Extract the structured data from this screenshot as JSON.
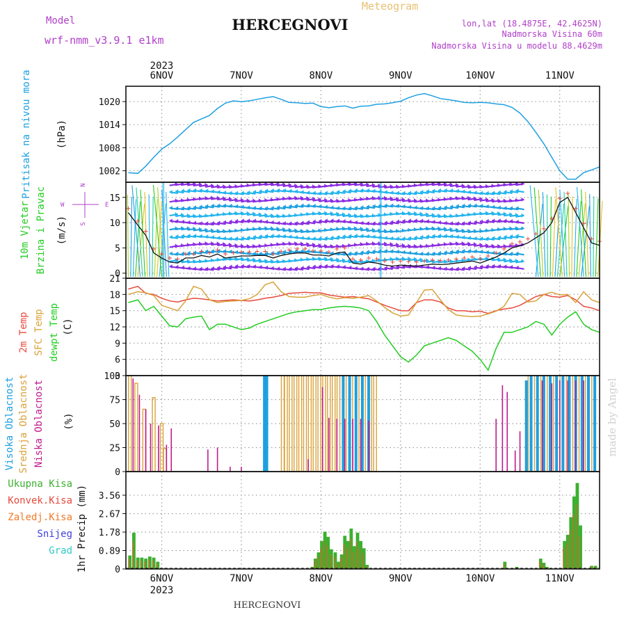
{
  "header": {
    "title": "HERCEGNOVI",
    "model_label": "Model",
    "model_name": "wrf-nmm_v3.9.1  e1km",
    "meteogram_label": "Meteogram",
    "lonlat": "lon,lat (18.4875E, 42.4625N)",
    "altitude": "Nadmorska Visina 60m",
    "model_altitude": "Nadmorska Visina u modelu 88.4629m",
    "footer_title": "HERCEGNOVI",
    "watermark": "made by Angel"
  },
  "colors": {
    "pressure": "#1ea0e0",
    "temp2m": "#e64a3c",
    "sfc": "#d9a23a",
    "dew": "#22cc22",
    "high_cloud": "#1ea0e0",
    "mid_cloud": "#d9a23a",
    "low_cloud": "#c01a8c",
    "precip_total": "#3cb030",
    "precip_conv": "#e64a3c",
    "title_purple": "#b040c8",
    "meteogram": "#e8c070"
  },
  "chart_data": [
    {
      "type": "line",
      "panel": "pressure",
      "ylabel_lines": [
        "Pritisak na nivou mora"
      ],
      "unit": "(hPa)",
      "x_days": [
        5.58,
        5.7,
        5.8,
        5.9,
        6.0,
        6.1,
        6.2,
        6.3,
        6.4,
        6.5,
        6.6,
        6.7,
        6.8,
        6.9,
        7.0,
        7.1,
        7.2,
        7.3,
        7.4,
        7.5,
        7.6,
        7.7,
        7.8,
        7.9,
        8.0,
        8.1,
        8.2,
        8.3,
        8.4,
        8.5,
        8.6,
        8.7,
        8.8,
        8.9,
        9.0,
        9.1,
        9.2,
        9.3,
        9.4,
        9.5,
        9.6,
        9.7,
        9.8,
        9.9,
        10.0,
        10.1,
        10.2,
        10.3,
        10.4,
        10.5,
        10.6,
        10.7,
        10.8,
        10.9,
        11.0,
        11.1,
        11.2,
        11.3,
        11.4,
        11.5
      ],
      "values": [
        1001.5,
        1001.3,
        1003.2,
        1005.5,
        1007.6,
        1009.0,
        1010.8,
        1012.7,
        1014.6,
        1015.5,
        1016.4,
        1018.2,
        1019.6,
        1020.2,
        1020.0,
        1020.2,
        1020.6,
        1021.0,
        1021.3,
        1020.6,
        1019.8,
        1019.7,
        1019.5,
        1019.6,
        1018.7,
        1018.4,
        1018.7,
        1018.9,
        1018.3,
        1018.8,
        1018.9,
        1019.3,
        1019.4,
        1019.7,
        1020.1,
        1021.0,
        1021.7,
        1022.1,
        1021.5,
        1020.8,
        1020.5,
        1020.2,
        1019.8,
        1019.7,
        1019.8,
        1019.7,
        1019.4,
        1019.2,
        1018.5,
        1017.0,
        1014.8,
        1012.0,
        1009.0,
        1005.5,
        1002.0,
        999.8,
        999.8,
        1001.5,
        1002.2,
        1003.0
      ],
      "ylim": [
        999,
        1024
      ],
      "yticks": [
        "1002",
        "1008",
        "1014",
        "1020"
      ]
    },
    {
      "type": "line",
      "panel": "wind",
      "ylabel_lines": [
        "10m Vjetar",
        "Brzina i Pravac"
      ],
      "unit": "(m/s)",
      "x_days": [
        5.58,
        5.7,
        5.8,
        5.9,
        6.0,
        6.1,
        6.2,
        6.3,
        6.4,
        6.5,
        6.6,
        6.7,
        6.8,
        6.9,
        7.0,
        7.1,
        7.2,
        7.3,
        7.4,
        7.5,
        7.6,
        7.7,
        7.8,
        7.9,
        8.0,
        8.1,
        8.2,
        8.3,
        8.4,
        8.5,
        8.6,
        8.7,
        8.8,
        8.9,
        9.0,
        9.1,
        9.2,
        9.3,
        9.4,
        9.5,
        9.6,
        9.7,
        9.8,
        9.9,
        10.0,
        10.1,
        10.2,
        10.3,
        10.4,
        10.5,
        10.6,
        10.7,
        10.8,
        10.9,
        11.0,
        11.1,
        11.2,
        11.3,
        11.4,
        11.5
      ],
      "values": [
        12.0,
        9.5,
        7.5,
        4.0,
        3.0,
        2.2,
        2.0,
        3.0,
        3.0,
        3.5,
        3.2,
        3.8,
        3.0,
        3.2,
        3.4,
        3.4,
        3.5,
        3.5,
        3.0,
        3.5,
        3.8,
        4.0,
        4.0,
        3.6,
        3.6,
        3.4,
        4.0,
        4.2,
        2.0,
        1.8,
        2.2,
        2.0,
        1.6,
        1.4,
        1.6,
        1.5,
        1.4,
        1.6,
        1.8,
        1.7,
        1.8,
        2.0,
        2.2,
        2.4,
        2.0,
        2.6,
        3.2,
        4.0,
        5.0,
        5.4,
        6.0,
        7.0,
        8.0,
        10.0,
        14.0,
        15.0,
        12.0,
        9.0,
        6.0,
        5.5
      ],
      "ylim": [
        -1,
        18
      ],
      "yticks": [
        "0",
        "5",
        "10",
        "15"
      ],
      "compass": {
        "n": "N",
        "s": "S",
        "e": "E",
        "w": "W"
      }
    },
    {
      "type": "line",
      "panel": "temperature",
      "ylabel_lines": [
        "2m Temp",
        "SFC Temp",
        "dewpt Temp"
      ],
      "unit": "(C)",
      "ylim": [
        3,
        21
      ],
      "yticks": [
        "3",
        "6",
        "9",
        "12",
        "15",
        "18",
        "21"
      ],
      "x_days": [
        5.58,
        5.7,
        5.8,
        5.9,
        6.0,
        6.1,
        6.2,
        6.3,
        6.4,
        6.5,
        6.6,
        6.7,
        6.8,
        6.9,
        7.0,
        7.1,
        7.2,
        7.3,
        7.4,
        7.5,
        7.6,
        7.7,
        7.8,
        7.9,
        8.0,
        8.1,
        8.2,
        8.3,
        8.4,
        8.5,
        8.6,
        8.7,
        8.8,
        8.9,
        9.0,
        9.1,
        9.2,
        9.3,
        9.4,
        9.5,
        9.6,
        9.7,
        9.8,
        9.9,
        10.0,
        10.1,
        10.2,
        10.3,
        10.4,
        10.5,
        10.6,
        10.7,
        10.8,
        10.9,
        11.0,
        11.1,
        11.2,
        11.3,
        11.4,
        11.5
      ],
      "series": [
        {
          "name": "2m Temp",
          "values": [
            19.0,
            19.5,
            18.2,
            18.0,
            17.3,
            16.8,
            16.6,
            17.0,
            17.3,
            17.2,
            17.0,
            16.8,
            16.9,
            17.0,
            16.9,
            16.8,
            17.0,
            17.3,
            17.5,
            17.8,
            18.2,
            18.3,
            18.4,
            18.3,
            18.3,
            17.9,
            17.7,
            17.5,
            17.6,
            17.4,
            17.2,
            16.6,
            16.0,
            15.5,
            15.0,
            15.0,
            16.5,
            17.0,
            17.0,
            16.6,
            15.5,
            15.0,
            15.0,
            14.8,
            14.9,
            14.5,
            15.0,
            15.3,
            15.5,
            16.0,
            16.8,
            17.6,
            18.0,
            17.6,
            17.5,
            17.8,
            17.0,
            15.8,
            15.5,
            15.0
          ]
        },
        {
          "name": "SFC Temp",
          "values": [
            18.0,
            18.5,
            18.3,
            17.8,
            16.0,
            15.5,
            15.0,
            16.8,
            19.5,
            19.0,
            17.0,
            16.5,
            16.7,
            16.8,
            16.9,
            17.2,
            18.0,
            19.8,
            20.3,
            18.5,
            17.6,
            17.5,
            17.5,
            17.8,
            18.0,
            17.5,
            17.2,
            17.4,
            17.3,
            17.5,
            17.8,
            16.8,
            15.6,
            14.6,
            14.0,
            14.2,
            16.5,
            18.8,
            18.9,
            17.0,
            15.2,
            14.2,
            14.0,
            13.9,
            14.0,
            14.4,
            14.9,
            15.8,
            18.2,
            18.0,
            16.6,
            16.8,
            18.0,
            18.4,
            17.9,
            18.0,
            16.5,
            18.5,
            17.0,
            16.5
          ]
        },
        {
          "name": "dewpt Temp",
          "values": [
            16.5,
            17.0,
            15.0,
            15.8,
            14.0,
            12.2,
            12.0,
            13.5,
            13.8,
            14.0,
            11.5,
            12.5,
            12.5,
            12.0,
            11.5,
            11.8,
            12.5,
            13.0,
            13.5,
            14.0,
            14.5,
            14.8,
            15.0,
            15.2,
            15.2,
            15.5,
            15.7,
            15.8,
            15.7,
            15.5,
            15.0,
            13.0,
            10.5,
            8.5,
            6.5,
            5.5,
            6.8,
            8.5,
            9.0,
            9.5,
            10.0,
            9.5,
            8.5,
            7.5,
            6.0,
            4.0,
            8.0,
            11.0,
            11.0,
            11.5,
            12.0,
            13.0,
            12.5,
            10.5,
            12.5,
            13.8,
            14.8,
            12.5,
            11.5,
            11.0
          ]
        }
      ]
    },
    {
      "type": "bar",
      "panel": "cloud",
      "ylabel_lines": [
        "Visoka Oblacnost",
        "Srednja Oblacnost",
        "Niska Oblacnost"
      ],
      "unit": "(%)",
      "ylim": [
        0,
        100
      ],
      "yticks": [
        "0",
        "25",
        "50",
        "75",
        "100"
      ],
      "series": [
        {
          "name": "Visoka Oblacnost",
          "bars": [
            [
              7.29,
              100
            ],
            [
              7.32,
              100
            ],
            [
              8.28,
              100
            ],
            [
              8.36,
              100
            ],
            [
              8.44,
              100
            ],
            [
              8.52,
              100
            ],
            [
              8.6,
              100
            ],
            [
              10.58,
              95
            ],
            [
              10.64,
              100
            ],
            [
              10.72,
              100
            ],
            [
              10.8,
              100
            ],
            [
              10.88,
              100
            ],
            [
              10.96,
              100
            ],
            [
              11.04,
              100
            ],
            [
              11.12,
              100
            ],
            [
              11.2,
              100
            ],
            [
              11.28,
              100
            ],
            [
              11.36,
              100
            ],
            [
              11.44,
              100
            ]
          ]
        },
        {
          "name": "Srednja Oblacnost",
          "bars": [
            [
              5.6,
              100
            ],
            [
              5.68,
              92
            ],
            [
              5.78,
              65
            ],
            [
              5.9,
              77
            ],
            [
              6.0,
              50
            ],
            [
              6.04,
              24
            ],
            [
              7.52,
              100
            ],
            [
              7.56,
              100
            ],
            [
              7.62,
              100
            ],
            [
              7.68,
              100
            ],
            [
              7.74,
              100
            ],
            [
              7.8,
              100
            ],
            [
              7.86,
              100
            ],
            [
              7.92,
              100
            ],
            [
              7.98,
              100
            ],
            [
              8.04,
              100
            ],
            [
              8.1,
              100
            ],
            [
              8.16,
              100
            ],
            [
              8.22,
              100
            ],
            [
              8.3,
              100
            ],
            [
              8.38,
              100
            ],
            [
              8.46,
              100
            ],
            [
              8.54,
              100
            ],
            [
              8.62,
              100
            ],
            [
              8.68,
              100
            ],
            [
              10.62,
              100
            ],
            [
              10.7,
              100
            ],
            [
              10.78,
              100
            ],
            [
              10.86,
              100
            ],
            [
              10.94,
              100
            ],
            [
              11.02,
              100
            ],
            [
              11.1,
              100
            ],
            [
              11.18,
              100
            ],
            [
              11.26,
              100
            ],
            [
              11.34,
              100
            ],
            [
              11.42,
              100
            ]
          ]
        },
        {
          "name": "Niska Oblacnost",
          "bars": [
            [
              5.64,
              97
            ],
            [
              5.72,
              80
            ],
            [
              5.8,
              65
            ],
            [
              5.86,
              50
            ],
            [
              5.96,
              48
            ],
            [
              6.06,
              28
            ],
            [
              6.12,
              45
            ],
            [
              6.58,
              23
            ],
            [
              6.7,
              25
            ],
            [
              6.86,
              5
            ],
            [
              7.0,
              5
            ],
            [
              7.84,
              13
            ],
            [
              8.02,
              88
            ],
            [
              8.1,
              56
            ],
            [
              8.2,
              55
            ],
            [
              8.3,
              55
            ],
            [
              8.4,
              55
            ],
            [
              8.5,
              55
            ],
            [
              8.6,
              53
            ],
            [
              10.2,
              55
            ],
            [
              10.28,
              90
            ],
            [
              10.34,
              83
            ],
            [
              10.44,
              22
            ],
            [
              10.5,
              42
            ],
            [
              10.78,
              95
            ],
            [
              10.9,
              92
            ],
            [
              11.0,
              95
            ],
            [
              11.1,
              95
            ],
            [
              11.2,
              95
            ],
            [
              11.3,
              95
            ]
          ]
        }
      ]
    },
    {
      "type": "bar",
      "panel": "precip",
      "ylabel_lines": [
        "1hr Precip (mm)"
      ],
      "unit": "",
      "ylim": [
        0,
        4.7
      ],
      "yticks": [
        "0",
        "0.89",
        "1.78",
        "2.67",
        "3.56"
      ],
      "legend": [
        "Ukupna Kisa",
        "Konvek.Kisa",
        "Zaledj.Kisa",
        "Snijeg",
        "Grad"
      ],
      "bars": [
        [
          5.6,
          0.65
        ],
        [
          5.65,
          1.75
        ],
        [
          5.7,
          0.55
        ],
        [
          5.75,
          0.55
        ],
        [
          5.8,
          0.5
        ],
        [
          5.85,
          0.6
        ],
        [
          5.9,
          0.55
        ],
        [
          5.95,
          0.35
        ],
        [
          6.05,
          0.05
        ],
        [
          7.89,
          0.1
        ],
        [
          7.93,
          0.5
        ],
        [
          7.97,
          0.8
        ],
        [
          8.01,
          1.35
        ],
        [
          8.05,
          1.8
        ],
        [
          8.09,
          1.55
        ],
        [
          8.13,
          0.95
        ],
        [
          8.18,
          0.8
        ],
        [
          8.22,
          0.35
        ],
        [
          8.26,
          0.7
        ],
        [
          8.3,
          1.6
        ],
        [
          8.34,
          1.35
        ],
        [
          8.38,
          1.95
        ],
        [
          8.42,
          1.1
        ],
        [
          8.46,
          1.75
        ],
        [
          8.5,
          1.35
        ],
        [
          8.54,
          1.0
        ],
        [
          8.58,
          0.2
        ],
        [
          10.31,
          0.35
        ],
        [
          10.46,
          0.1
        ],
        [
          10.76,
          0.5
        ],
        [
          10.8,
          0.3
        ],
        [
          10.84,
          0.1
        ],
        [
          11.06,
          1.35
        ],
        [
          11.1,
          1.65
        ],
        [
          11.14,
          2.5
        ],
        [
          11.18,
          3.5
        ],
        [
          11.22,
          4.15
        ],
        [
          11.26,
          2.1
        ],
        [
          11.4,
          0.15
        ],
        [
          11.45,
          0.15
        ]
      ]
    }
  ],
  "x_axis": {
    "day_labels": [
      {
        "x": 6,
        "label": "6NOV"
      },
      {
        "x": 7,
        "label": "7NOV"
      },
      {
        "x": 8,
        "label": "8NOV"
      },
      {
        "x": 9,
        "label": "9NOV"
      },
      {
        "x": 10,
        "label": "10NOV"
      },
      {
        "x": 11,
        "label": "11NOV"
      }
    ],
    "year": "2023",
    "xlim": [
      5.55,
      11.5
    ]
  }
}
